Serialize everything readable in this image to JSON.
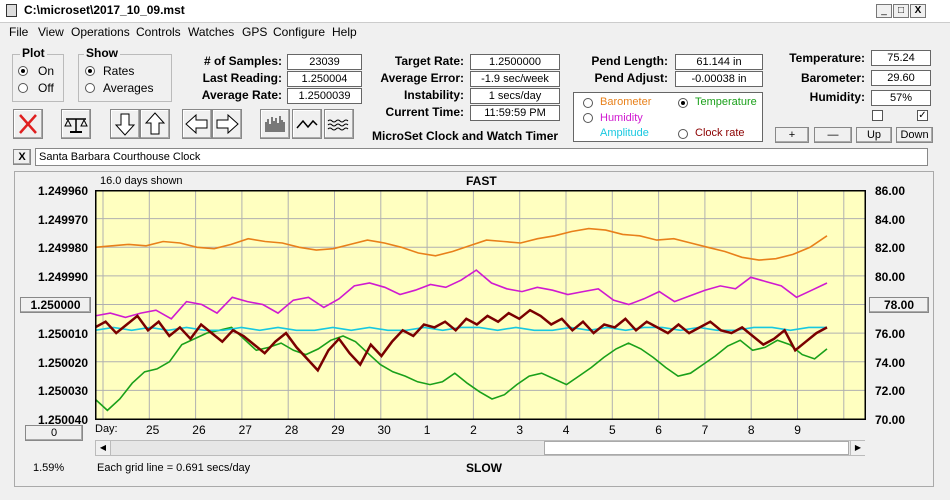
{
  "window": {
    "title": "C:\\microset\\2017_10_09.mst",
    "min": "_",
    "max": "□",
    "close": "X"
  },
  "menu": [
    "File",
    "View",
    "Operations",
    "Controls",
    "Watches",
    "GPS",
    "Configure",
    "Help"
  ],
  "plot_group": {
    "title": "Plot",
    "options": [
      "On",
      "Off"
    ],
    "selected": "On"
  },
  "show_group": {
    "title": "Show",
    "options": [
      "Rates",
      "Averages"
    ],
    "selected": "Rates"
  },
  "stats": {
    "samples_label": "# of Samples:",
    "samples": "23039",
    "last_label": "Last Reading:",
    "last": "1.250004",
    "avg_label": "Average Rate:",
    "avg": "1.2500039",
    "target_label": "Target Rate:",
    "target": "1.2500000",
    "avgerr_label": "Average Error:",
    "avgerr": "-1.9 sec/week",
    "instab_label": "Instability:",
    "instab": "1 secs/day",
    "time_label": "Current Time:",
    "time": "11:59:59 PM",
    "pendlen_label": "Pend Length:",
    "pendlen": "61.144 in",
    "pendadj_label": "Pend Adjust:",
    "pendadj": "-0.00038 in",
    "temp_label": "Temperature:",
    "temp": "75.24",
    "baro_label": "Barometer:",
    "baro": "29.60",
    "hum_label": "Humidity:",
    "hum": "57%"
  },
  "app_name": "MicroSet Clock and Watch Timer",
  "legend": [
    {
      "label": "Barometer",
      "color": "#e8801a",
      "selected": false
    },
    {
      "label": "Temperature",
      "color": "#1aa01a",
      "selected": true
    },
    {
      "label": "Humidity",
      "color": "#d01ad0",
      "selected": false
    },
    {
      "label": "Clock rate",
      "color": "#8b0000",
      "selected": false
    },
    {
      "label": "Amplitude",
      "color": "#18c8e0",
      "selected": false
    }
  ],
  "checkboxes": {
    "left": false,
    "right": true
  },
  "small_buttons": {
    "plus": "+",
    "minus": "—",
    "up": "Up",
    "down": "Down"
  },
  "description": "Santa Barbara Courthouse Clock",
  "desc_close": "X",
  "toolbar": [
    "stop-icon",
    "balance-icon",
    "arrow-down-icon",
    "arrow-up-icon",
    "arrow-left-icon",
    "arrow-right-icon",
    "bars-icon",
    "wave-icon",
    "noise-icon"
  ],
  "chart_header": {
    "days_shown": "16.0 days shown",
    "top": "FAST",
    "bottom": "SLOW",
    "gridline": "Each grid line = 0.691 secs/day",
    "percent": "1.59%",
    "day_label": "Day:",
    "center_left_btn": "1.250000",
    "center_right_btn": "78.00",
    "zero_btn": "0"
  },
  "chart_data": {
    "type": "line",
    "x_ticks": [
      "25",
      "26",
      "27",
      "28",
      "29",
      "30",
      "1",
      "2",
      "3",
      "4",
      "5",
      "6",
      "7",
      "8",
      "9"
    ],
    "y_left_ticks": [
      "1.249960",
      "1.249970",
      "1.249980",
      "1.249990",
      "1.250000",
      "1.250010",
      "1.250020",
      "1.250030",
      "1.250040"
    ],
    "y_left_range": [
      1.24996,
      1.25004
    ],
    "y_right_ticks": [
      "86.00",
      "84.00",
      "82.00",
      "80.00",
      "78.00",
      "76.00",
      "74.00",
      "72.00",
      "70.00"
    ],
    "y_right_range": [
      70,
      86
    ],
    "grid": true,
    "series": [
      {
        "name": "Barometer",
        "color": "#e8801a",
        "values": [
          82.0,
          82.1,
          82.2,
          82.1,
          82.4,
          82.3,
          82.0,
          81.9,
          82.2,
          82.6,
          82.4,
          82.3,
          82.0,
          81.8,
          81.9,
          82.2,
          82.5,
          82.3,
          82.0,
          81.6,
          81.4,
          81.7,
          82.1,
          82.5,
          82.4,
          82.3,
          82.6,
          82.8,
          83.1,
          83.3,
          83.2,
          82.9,
          82.8,
          82.5,
          82.6,
          82.3,
          82.0,
          81.7,
          81.3,
          81.1,
          81.2,
          81.5,
          82.0,
          82.8
        ]
      },
      {
        "name": "Temperature",
        "color": "#1aa01a",
        "values": [
          71.4,
          70.6,
          71.4,
          72.5,
          73.3,
          73.5,
          74.0,
          75.2,
          75.6,
          76.0,
          76.2,
          76.4,
          75.6,
          74.8,
          75.0,
          75.3,
          74.8,
          74.5,
          74.9,
          75.5,
          75.8,
          75.4,
          74.6,
          73.8,
          73.3,
          73.0,
          72.6,
          72.4,
          72.6,
          73.2,
          72.5,
          71.9,
          71.4,
          71.7,
          72.4,
          73.0,
          73.2,
          72.8,
          72.4,
          73.0,
          73.6,
          74.3,
          74.9,
          75.3,
          74.9,
          74.3,
          73.6,
          73.0,
          73.2,
          73.8,
          74.4,
          75.1,
          75.5,
          74.8,
          75.0,
          75.5,
          75.2,
          74.5,
          74.2,
          74.9
        ]
      },
      {
        "name": "Humidity",
        "color": "#d01ad0",
        "values": [
          77.2,
          77.4,
          77.1,
          77.4,
          77.6,
          77.0,
          78.2,
          78.0,
          77.4,
          78.5,
          78.2,
          78.0,
          77.4,
          78.3,
          78.5,
          77.8,
          78.4,
          79.3,
          79.5,
          79.2,
          78.7,
          79.0,
          79.4,
          79.2,
          79.7,
          80.4,
          79.5,
          79.1,
          78.9,
          79.2,
          79.0,
          78.7,
          78.9,
          79.1,
          78.3,
          78.0,
          78.4,
          78.9,
          78.2,
          78.6,
          79.0,
          79.3,
          79.1,
          79.9,
          79.6,
          79.3,
          78.5,
          79.0,
          79.5
        ]
      },
      {
        "name": "Amplitude",
        "color": "#18c8e0",
        "values": [
          1.250009,
          1.250008,
          1.250009,
          1.250008,
          1.250009,
          1.250008,
          1.250009,
          1.250009,
          1.250008,
          1.250009,
          1.250008,
          1.250009,
          1.250009,
          1.250008,
          1.250009,
          1.250008,
          1.250009,
          1.250009,
          1.250008,
          1.250009,
          1.250008,
          1.250008,
          1.250009,
          1.250008,
          1.250009,
          1.250009,
          1.250008,
          1.250009,
          1.250008,
          1.250009,
          1.250008,
          1.250008,
          1.250009,
          1.250008,
          1.250009,
          1.250009,
          1.250008,
          1.250008,
          1.250009,
          1.250008,
          1.250008
        ]
      },
      {
        "name": "Clock rate",
        "color": "#7a0000",
        "values": [
          1.250008,
          1.250006,
          1.25001,
          1.250007,
          1.250004,
          1.250009,
          1.250006,
          1.250011,
          1.250008,
          1.250012,
          1.250007,
          1.25001,
          1.250013,
          1.250009,
          1.250011,
          1.250014,
          1.250017,
          1.250013,
          1.25001,
          1.250015,
          1.250019,
          1.250023,
          1.250016,
          1.250012,
          1.250017,
          1.250021,
          1.250014,
          1.250018,
          1.250013,
          1.250009,
          1.250011,
          1.250007,
          1.250008,
          1.250006,
          1.250009,
          1.250005,
          1.250007,
          1.250004,
          1.250006,
          1.250003,
          1.250005,
          1.250002,
          1.250004,
          1.250007,
          1.250005,
          1.250009,
          1.250006,
          1.25001,
          1.250007,
          1.250008,
          1.250005,
          1.250009,
          1.250006,
          1.250008,
          1.25001,
          1.250007,
          1.25001,
          1.250008,
          1.250006,
          1.250009,
          1.25001,
          1.250008,
          1.250011,
          1.250014,
          1.250012,
          1.250009,
          1.250016,
          1.250013,
          1.25001,
          1.250008
        ]
      }
    ]
  }
}
